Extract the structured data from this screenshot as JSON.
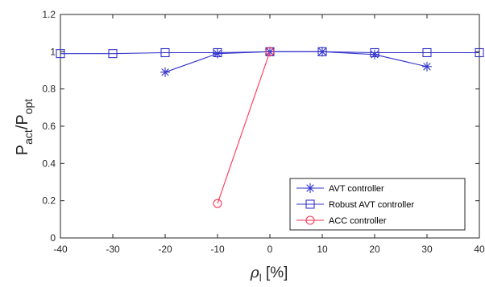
{
  "chart_data": {
    "type": "line",
    "title": "",
    "xlabel": {
      "base": "ρ",
      "sub": "l",
      "suffix": " [%]"
    },
    "ylabel": {
      "p1": "P",
      "sub1": "act",
      "p2": "/P",
      "sub2": "opt"
    },
    "xlim": [
      -40,
      40
    ],
    "ylim": [
      0,
      1.2
    ],
    "x_ticks": [
      "-40",
      "-30",
      "-20",
      "-10",
      "0",
      "10",
      "20",
      "30",
      "40"
    ],
    "y_ticks": [
      "0",
      "0.2",
      "0.4",
      "0.6",
      "0.8",
      "1",
      "1.2"
    ],
    "grid": false,
    "legend_position": "bottom-right",
    "series": [
      {
        "name": "AVT controller",
        "color": "#3333cc",
        "marker": "asterisk",
        "points": [
          [
            -20,
            0.89
          ],
          [
            -10,
            0.99
          ],
          [
            0,
            1.0
          ],
          [
            10,
            1.0
          ],
          [
            20,
            0.985
          ],
          [
            30,
            0.92
          ]
        ]
      },
      {
        "name": "Robust AVT controller",
        "color": "#3333cc",
        "marker": "square",
        "points": [
          [
            -40,
            0.99
          ],
          [
            -30,
            0.99
          ],
          [
            -20,
            0.995
          ],
          [
            -10,
            0.995
          ],
          [
            0,
            1.0
          ],
          [
            10,
            1.0
          ],
          [
            20,
            0.995
          ],
          [
            30,
            0.995
          ],
          [
            40,
            0.995
          ]
        ]
      },
      {
        "name": "ACC controller",
        "color": "#ff3355",
        "marker": "circle",
        "points": [
          [
            -10,
            0.185
          ],
          [
            0,
            1.0
          ]
        ]
      }
    ]
  }
}
